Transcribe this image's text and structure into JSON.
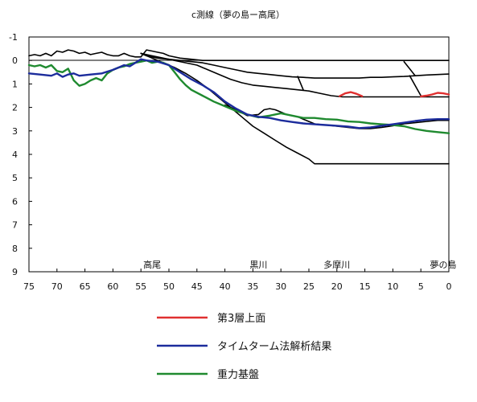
{
  "chart_data": {
    "type": "line",
    "title": "c測線（夢の島ー高尾）",
    "xlabel": "",
    "ylabel": "",
    "xlim": [
      75,
      0
    ],
    "ylim": [
      -1,
      9
    ],
    "x_reversed": true,
    "y_inverted": true,
    "grid": false,
    "x_ticks": [
      75,
      70,
      65,
      60,
      55,
      50,
      45,
      40,
      35,
      30,
      25,
      20,
      15,
      10,
      5,
      0
    ],
    "y_ticks": [
      -1,
      0,
      1,
      2,
      3,
      4,
      5,
      6,
      7,
      8,
      9
    ],
    "place_labels": [
      {
        "text": "高尾",
        "x": 53
      },
      {
        "text": "黒川",
        "x": 34
      },
      {
        "text": "多摩川",
        "x": 20
      },
      {
        "text": "夢の島",
        "x": 1
      }
    ],
    "legend": {
      "placement": "bottom-center",
      "entries": [
        {
          "name": "第3層上面",
          "color": "#e03030"
        },
        {
          "name": "タイムターム法解析結果",
          "color": "#1c2c9c"
        },
        {
          "name": "重力基盤",
          "color": "#1f8a2f"
        }
      ]
    },
    "series": [
      {
        "name": "第3層上面",
        "color": "#e03030",
        "segments": [
          {
            "x": [
              19.5,
              18.5,
              17.5,
              16.5,
              15.5
            ],
            "y": [
              1.52,
              1.4,
              1.35,
              1.42,
              1.52
            ]
          },
          {
            "x": [
              5,
              4,
              3,
              2,
              1,
              0
            ],
            "y": [
              1.53,
              1.5,
              1.45,
              1.38,
              1.4,
              1.45
            ]
          }
        ]
      },
      {
        "name": "タイムターム法解析結果",
        "color": "#1c2c9c",
        "x": [
          75,
          73,
          71,
          70,
          69,
          68,
          67,
          66,
          64,
          62,
          60,
          59,
          58,
          57,
          56,
          55,
          54,
          52,
          50,
          48,
          46,
          44,
          42,
          40,
          38,
          36,
          34,
          32,
          30,
          28,
          26,
          24,
          22,
          20,
          18,
          16,
          14,
          12,
          10,
          8,
          6,
          4,
          2,
          0
        ],
        "y": [
          0.55,
          0.6,
          0.65,
          0.55,
          0.7,
          0.6,
          0.55,
          0.65,
          0.6,
          0.55,
          0.4,
          0.3,
          0.2,
          0.25,
          0.1,
          -0.05,
          0.0,
          0.05,
          0.2,
          0.5,
          0.8,
          1.05,
          1.35,
          1.75,
          2.05,
          2.3,
          2.4,
          2.45,
          2.55,
          2.62,
          2.68,
          2.72,
          2.75,
          2.78,
          2.82,
          2.88,
          2.85,
          2.78,
          2.72,
          2.65,
          2.58,
          2.52,
          2.5,
          2.5
        ]
      },
      {
        "name": "重力基盤",
        "color": "#1f8a2f",
        "x": [
          75,
          74,
          73,
          72,
          71,
          70,
          69,
          68,
          67,
          66,
          65,
          64,
          63,
          62,
          61,
          60,
          59,
          58,
          57,
          56,
          55,
          54,
          53,
          52,
          51,
          50,
          49,
          48,
          47,
          46,
          44,
          42,
          40,
          38,
          36,
          34,
          32,
          30,
          28,
          26,
          24,
          22,
          20,
          18,
          16,
          14,
          12,
          10,
          8,
          6,
          4,
          2,
          0
        ],
        "y": [
          0.2,
          0.25,
          0.2,
          0.3,
          0.2,
          0.45,
          0.5,
          0.35,
          0.85,
          1.08,
          1.0,
          0.85,
          0.75,
          0.85,
          0.55,
          0.4,
          0.3,
          0.25,
          0.15,
          0.1,
          0.05,
          0.0,
          0.1,
          0.05,
          0.1,
          0.2,
          0.5,
          0.8,
          1.05,
          1.25,
          1.5,
          1.75,
          1.95,
          2.15,
          2.3,
          2.42,
          2.35,
          2.25,
          2.35,
          2.45,
          2.45,
          2.5,
          2.52,
          2.6,
          2.62,
          2.68,
          2.72,
          2.75,
          2.8,
          2.92,
          3.0,
          3.05,
          3.1
        ]
      },
      {
        "name": "",
        "color": "#000000",
        "x": [
          75,
          74,
          73,
          72,
          71,
          70,
          69,
          68,
          67,
          66,
          65,
          64,
          63,
          62,
          61,
          60,
          59,
          58,
          57,
          56,
          55,
          54,
          53,
          52,
          51,
          50,
          48,
          46,
          44,
          42,
          40,
          38,
          36,
          34,
          32,
          30,
          28,
          26,
          24,
          22,
          20,
          18,
          16,
          14,
          12,
          10,
          8,
          6,
          4,
          2,
          0
        ],
        "y": [
          -0.2,
          -0.25,
          -0.2,
          -0.3,
          -0.2,
          -0.4,
          -0.35,
          -0.45,
          -0.4,
          -0.3,
          -0.35,
          -0.25,
          -0.3,
          -0.35,
          -0.25,
          -0.2,
          -0.2,
          -0.3,
          -0.2,
          -0.15,
          -0.15,
          -0.45,
          -0.4,
          -0.35,
          -0.3,
          -0.2,
          -0.1,
          -0.05,
          0.0,
          0.0,
          0.0,
          0.0,
          0.0,
          0.0,
          0.0,
          0.0,
          0.0,
          0.0,
          0.0,
          0.0,
          0.0,
          0.0,
          0.0,
          0.0,
          0.0,
          0.0,
          0.0,
          0.0,
          0.0,
          0.0,
          0.0
        ]
      },
      {
        "name": "",
        "color": "#000000",
        "x": [
          55,
          54,
          52,
          50,
          48,
          46,
          44,
          42,
          40,
          38,
          36,
          34,
          32,
          30,
          28,
          26,
          24,
          22,
          20,
          18,
          16,
          14,
          12,
          10,
          8,
          6,
          4,
          2,
          0
        ],
        "y": [
          -0.3,
          -0.2,
          -0.1,
          -0.05,
          0.0,
          0.05,
          0.1,
          0.2,
          0.3,
          0.4,
          0.5,
          0.55,
          0.6,
          0.65,
          0.7,
          0.72,
          0.75,
          0.75,
          0.75,
          0.75,
          0.75,
          0.72,
          0.72,
          0.7,
          0.68,
          0.65,
          0.62,
          0.6,
          0.58
        ]
      },
      {
        "name": "",
        "color": "#000000",
        "x": [
          55,
          53,
          51,
          49,
          47,
          45,
          43,
          41,
          39,
          37,
          35,
          33,
          31,
          29,
          27,
          25,
          23,
          21,
          19,
          17,
          15,
          13,
          11,
          9,
          7,
          5,
          3,
          1,
          0
        ],
        "y": [
          -0.3,
          -0.2,
          -0.1,
          0.0,
          0.1,
          0.2,
          0.4,
          0.6,
          0.8,
          0.95,
          1.05,
          1.1,
          1.15,
          1.2,
          1.25,
          1.3,
          1.4,
          1.5,
          1.55,
          1.55,
          1.55,
          1.55,
          1.55,
          1.55,
          1.55,
          1.55,
          1.55,
          1.55,
          1.55
        ]
      },
      {
        "name": "",
        "color": "#000000",
        "x": [
          55,
          53,
          51,
          49,
          47,
          45,
          43,
          41,
          39,
          37,
          35,
          33,
          31,
          29,
          27,
          25,
          24,
          22,
          20,
          18,
          16,
          14,
          12,
          10,
          8,
          6,
          4,
          2,
          0
        ],
        "y": [
          -0.3,
          -0.1,
          0.1,
          0.3,
          0.55,
          0.85,
          1.2,
          1.6,
          2.0,
          2.4,
          2.8,
          3.1,
          3.4,
          3.7,
          3.95,
          4.2,
          4.4,
          4.4,
          4.4,
          4.4,
          4.4,
          4.4,
          4.4,
          4.4,
          4.4,
          4.4,
          4.4,
          4.4,
          4.4
        ]
      },
      {
        "name": "",
        "color": "#000000",
        "x": [
          40,
          38,
          36,
          34,
          33,
          32,
          31,
          30,
          29,
          28,
          27,
          26,
          25,
          24,
          22,
          20,
          18,
          16,
          14,
          12,
          10,
          8,
          6,
          4,
          2,
          0
        ],
        "y": [
          1.9,
          2.1,
          2.35,
          2.3,
          2.1,
          2.05,
          2.1,
          2.2,
          2.3,
          2.35,
          2.4,
          2.5,
          2.6,
          2.7,
          2.75,
          2.8,
          2.85,
          2.9,
          2.9,
          2.85,
          2.78,
          2.7,
          2.65,
          2.6,
          2.55,
          2.55
        ]
      },
      {
        "name": "",
        "color": "#000000",
        "segments": [
          {
            "x": [
              27,
              26
            ],
            "y": [
              0.68,
              1.25
            ]
          },
          {
            "x": [
              8,
              6
            ],
            "y": [
              0.05,
              0.65
            ]
          },
          {
            "x": [
              7,
              5
            ],
            "y": [
              0.65,
              1.5
            ]
          }
        ]
      }
    ]
  }
}
